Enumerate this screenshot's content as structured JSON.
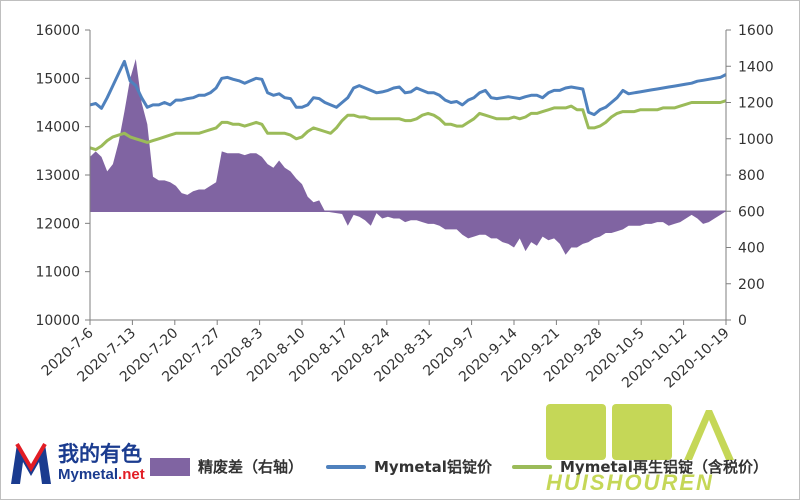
{
  "chart_data": {
    "type": "area+line",
    "x_labels": [
      "2020-7-6",
      "2020-7-13",
      "2020-7-20",
      "2020-7-27",
      "2020-8-3",
      "2020-8-10",
      "2020-8-17",
      "2020-8-24",
      "2020-8-31",
      "2020-9-7",
      "2020-9-14",
      "2020-9-21",
      "2020-9-28",
      "2020-10-5",
      "2020-10-12",
      "2020-10-19"
    ],
    "y_left": {
      "ticks": [
        "10000",
        "11000",
        "12000",
        "13000",
        "14000",
        "15000",
        "16000"
      ],
      "range": [
        10000,
        16000
      ]
    },
    "y_right": {
      "ticks": [
        "0",
        "200",
        "400",
        "600",
        "800",
        "1000",
        "1200",
        "1400",
        "1600"
      ],
      "range": [
        0,
        1600
      ]
    },
    "area_baseline_right": 600,
    "grid": false,
    "series": [
      {
        "name": "精废差（右轴）",
        "axis": "right",
        "kind": "area",
        "color": "#8064a2",
        "x": [
          0,
          1,
          2,
          3,
          4,
          5,
          6,
          7,
          8,
          9,
          10,
          11,
          12,
          13,
          14,
          15,
          16,
          17,
          18,
          19,
          20,
          21,
          22,
          23,
          24,
          25,
          26,
          27,
          28,
          29,
          30,
          31,
          32,
          33,
          34,
          35,
          36,
          37,
          38,
          39,
          40,
          41,
          42,
          43,
          44,
          45,
          46,
          47,
          48,
          49,
          50,
          51,
          52,
          53,
          54,
          55,
          56,
          57,
          58,
          59,
          60,
          61,
          62,
          63,
          64,
          65,
          66,
          67,
          68,
          69,
          70,
          71,
          72,
          73,
          74,
          75,
          76,
          77,
          78,
          79,
          80,
          81,
          82,
          83,
          84,
          85,
          86,
          87,
          88,
          89,
          90,
          91,
          92,
          93,
          94,
          95,
          96,
          97,
          98,
          99,
          100,
          101,
          102,
          103,
          104,
          105,
          106,
          107,
          108,
          109,
          110,
          111
        ],
        "values": [
          900,
          930,
          900,
          820,
          860,
          980,
          1150,
          1330,
          1440,
          1200,
          1080,
          790,
          770,
          770,
          760,
          740,
          700,
          690,
          710,
          720,
          720,
          740,
          760,
          930,
          920,
          920,
          920,
          910,
          920,
          920,
          900,
          860,
          840,
          880,
          840,
          820,
          780,
          750,
          680,
          650,
          660,
          600,
          595,
          590,
          585,
          520,
          580,
          570,
          550,
          520,
          590,
          560,
          570,
          560,
          560,
          540,
          550,
          550,
          540,
          530,
          530,
          520,
          500,
          500,
          500,
          470,
          450,
          460,
          470,
          470,
          450,
          450,
          430,
          420,
          400,
          450,
          380,
          430,
          410,
          460,
          440,
          450,
          420,
          360,
          400,
          400,
          420,
          430,
          450,
          460,
          480,
          480,
          490,
          500,
          520,
          520,
          520,
          530,
          530,
          540,
          540,
          520,
          530,
          540,
          560,
          580,
          560,
          530,
          540,
          560,
          580,
          600
        ]
      },
      {
        "name": "Mymetal铝锭价",
        "axis": "left",
        "kind": "line",
        "color": "#4f81bd",
        "x": [
          0,
          1,
          2,
          3,
          4,
          5,
          6,
          7,
          8,
          9,
          10,
          11,
          12,
          13,
          14,
          15,
          16,
          17,
          18,
          19,
          20,
          21,
          22,
          23,
          24,
          25,
          26,
          27,
          28,
          29,
          30,
          31,
          32,
          33,
          34,
          35,
          36,
          37,
          38,
          39,
          40,
          41,
          42,
          43,
          44,
          45,
          46,
          47,
          48,
          49,
          50,
          51,
          52,
          53,
          54,
          55,
          56,
          57,
          58,
          59,
          60,
          61,
          62,
          63,
          64,
          65,
          66,
          67,
          68,
          69,
          70,
          71,
          72,
          73,
          74,
          75,
          76,
          77,
          78,
          79,
          80,
          81,
          82,
          83,
          84,
          85,
          86,
          87,
          88,
          89,
          90,
          91,
          92,
          93,
          94,
          95,
          96,
          97,
          98,
          99,
          100,
          101,
          102,
          103,
          104,
          105,
          106,
          107,
          108,
          109,
          110,
          111
        ],
        "values": [
          14450,
          14480,
          14380,
          14600,
          14850,
          15100,
          15350,
          14950,
          14850,
          14600,
          14400,
          14450,
          14450,
          14500,
          14450,
          14550,
          14550,
          14580,
          14600,
          14650,
          14650,
          14700,
          14800,
          15000,
          15020,
          14980,
          14950,
          14900,
          14950,
          15000,
          14980,
          14700,
          14650,
          14680,
          14600,
          14580,
          14400,
          14400,
          14450,
          14600,
          14580,
          14500,
          14450,
          14400,
          14500,
          14600,
          14800,
          14850,
          14800,
          14750,
          14700,
          14720,
          14750,
          14800,
          14820,
          14700,
          14720,
          14800,
          14750,
          14700,
          14700,
          14650,
          14550,
          14500,
          14520,
          14450,
          14550,
          14600,
          14700,
          14750,
          14600,
          14580,
          14600,
          14620,
          14600,
          14580,
          14620,
          14650,
          14650,
          14600,
          14700,
          14750,
          14750,
          14800,
          14820,
          14800,
          14780,
          14300,
          14250,
          14350,
          14400,
          14500,
          14600,
          14750,
          14680,
          14700,
          14720,
          14740,
          14760,
          14780,
          14800,
          14820,
          14840,
          14860,
          14880,
          14900,
          14940,
          14960,
          14980,
          15000,
          15020,
          15080
        ]
      },
      {
        "name": "Mymetal再生铝锭（含税价）",
        "axis": "right",
        "kind": "line",
        "color": "#9bbb59",
        "x": [
          0,
          1,
          2,
          3,
          4,
          5,
          6,
          7,
          8,
          9,
          10,
          11,
          12,
          13,
          14,
          15,
          16,
          17,
          18,
          19,
          20,
          21,
          22,
          23,
          24,
          25,
          26,
          27,
          28,
          29,
          30,
          31,
          32,
          33,
          34,
          35,
          36,
          37,
          38,
          39,
          40,
          41,
          42,
          43,
          44,
          45,
          46,
          47,
          48,
          49,
          50,
          51,
          52,
          53,
          54,
          55,
          56,
          57,
          58,
          59,
          60,
          61,
          62,
          63,
          64,
          65,
          66,
          67,
          68,
          69,
          70,
          71,
          72,
          73,
          74,
          75,
          76,
          77,
          78,
          79,
          80,
          81,
          82,
          83,
          84,
          85,
          86,
          87,
          88,
          89,
          90,
          91,
          92,
          93,
          94,
          95,
          96,
          97,
          98,
          99,
          100,
          101,
          102,
          103,
          104,
          105,
          106,
          107,
          108,
          109,
          110,
          111
        ],
        "values": [
          950,
          940,
          960,
          990,
          1010,
          1020,
          1030,
          1010,
          1000,
          990,
          980,
          990,
          1000,
          1010,
          1020,
          1030,
          1030,
          1030,
          1030,
          1030,
          1040,
          1050,
          1060,
          1090,
          1090,
          1080,
          1080,
          1070,
          1080,
          1090,
          1080,
          1030,
          1030,
          1030,
          1030,
          1020,
          1000,
          1010,
          1040,
          1060,
          1050,
          1040,
          1030,
          1060,
          1100,
          1130,
          1130,
          1120,
          1120,
          1110,
          1110,
          1110,
          1110,
          1110,
          1110,
          1100,
          1100,
          1110,
          1130,
          1140,
          1130,
          1110,
          1080,
          1080,
          1070,
          1070,
          1090,
          1110,
          1140,
          1130,
          1120,
          1110,
          1110,
          1110,
          1120,
          1110,
          1120,
          1140,
          1140,
          1150,
          1160,
          1170,
          1170,
          1170,
          1180,
          1160,
          1160,
          1060,
          1060,
          1070,
          1090,
          1120,
          1140,
          1150,
          1150,
          1150,
          1160,
          1160,
          1160,
          1160,
          1170,
          1170,
          1170,
          1180,
          1190,
          1200,
          1200,
          1200,
          1200,
          1200,
          1200,
          1210
        ]
      }
    ]
  },
  "legend": {
    "area_label": "精废差（右轴）",
    "line1_label": "Mymetal铝锭价",
    "line2_label": "Mymetal再生铝锭（含税价）"
  },
  "logo": {
    "cn": "我的有色",
    "url_main": "Mymetal",
    "url_suffix": ".net"
  },
  "watermark": {
    "text": "HUISHOUREN"
  },
  "colors": {
    "area": "#8064a2",
    "line_blue": "#4f81bd",
    "line_green": "#9bbb59",
    "watermark": "#bcd13a"
  }
}
